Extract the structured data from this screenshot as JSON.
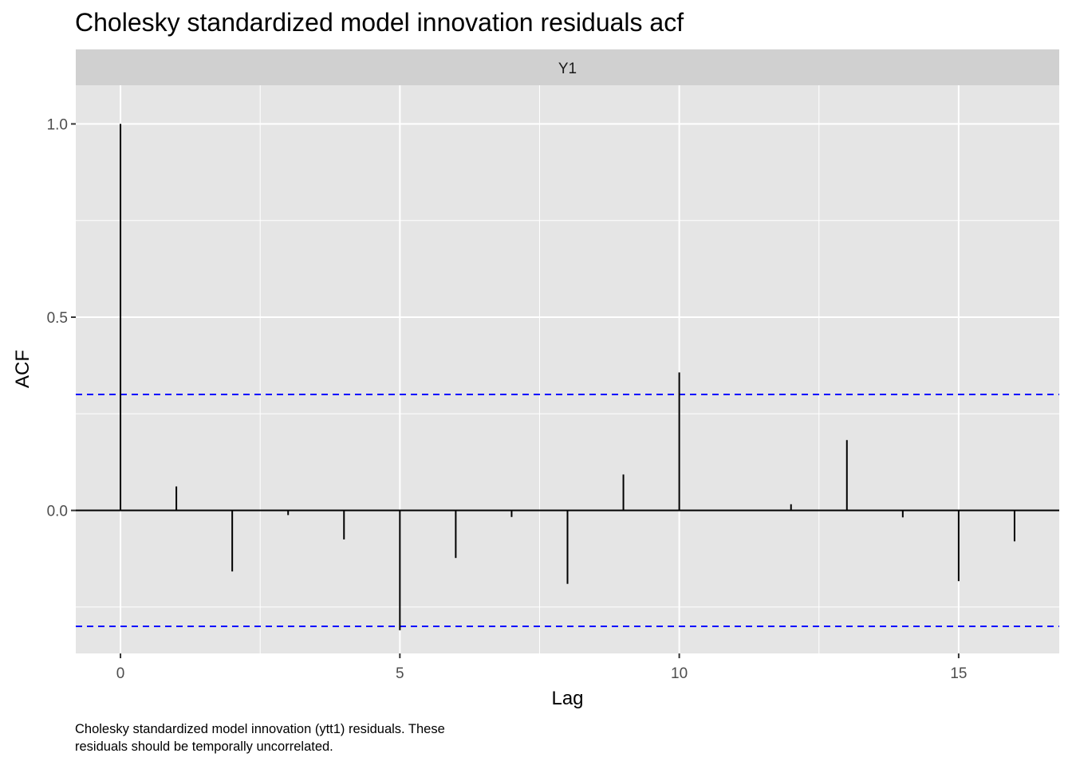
{
  "chart_data": {
    "type": "bar",
    "style": "acf-spikes",
    "title": "Cholesky standardized model innovation residuals acf",
    "facet_label": "Y1",
    "xlabel": "Lag",
    "ylabel": "ACF",
    "caption_lines": [
      "Cholesky standardized model innovation (ytt1) residuals. These",
      "residuals should be temporally uncorrelated."
    ],
    "xlim": [
      -0.8,
      16.8
    ],
    "ylim": [
      -0.37,
      1.1
    ],
    "x_ticks": [
      0,
      5,
      10,
      15
    ],
    "x_tick_labels": [
      "0",
      "5",
      "10",
      "15"
    ],
    "y_ticks": [
      0.0,
      0.5,
      1.0
    ],
    "y_tick_labels": [
      "0.0",
      "0.5",
      "1.0"
    ],
    "confidence_bounds": [
      0.3,
      -0.3
    ],
    "confidence_color": "#0000ff",
    "grid": true,
    "panel_background": "#e5e5e5",
    "strip_background": "#d0d0d0",
    "lags": [
      0,
      1,
      2,
      3,
      4,
      5,
      6,
      7,
      8,
      9,
      10,
      11,
      12,
      13,
      14,
      15,
      16
    ],
    "values": [
      1.0,
      0.062,
      -0.158,
      -0.012,
      -0.075,
      -0.31,
      -0.123,
      -0.017,
      -0.19,
      0.093,
      0.357,
      0.0,
      0.016,
      0.182,
      -0.018,
      -0.183,
      -0.08
    ]
  }
}
